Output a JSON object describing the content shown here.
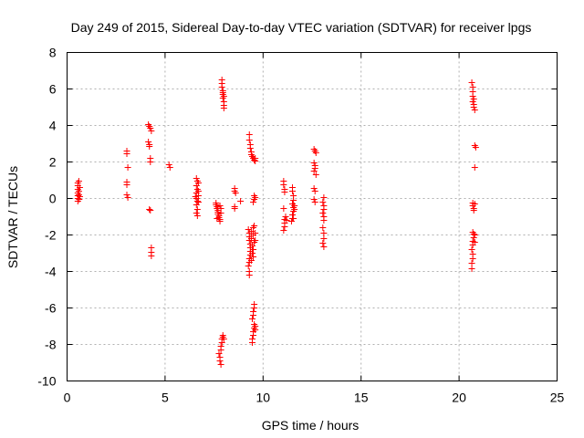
{
  "chart_data": {
    "type": "scatter",
    "title": "Day 249 of 2015, Sidereal Day-to-day VTEC variation (SDTVAR) for receiver lpgs",
    "xlabel": "GPS time / hours",
    "ylabel": "SDTVAR / TECUs",
    "xlim": [
      0,
      25
    ],
    "ylim": [
      -10,
      8
    ],
    "xticks": [
      0,
      5,
      10,
      15,
      20,
      25
    ],
    "yticks": [
      -10,
      -8,
      -6,
      -4,
      -2,
      0,
      2,
      4,
      6,
      8
    ],
    "grid": true,
    "marker": "plus",
    "color": "#ff0000",
    "series": [
      {
        "name": "SDTVAR",
        "points": [
          [
            0.55,
            0.85
          ],
          [
            0.55,
            0.7
          ],
          [
            0.55,
            0.5
          ],
          [
            0.55,
            0.3
          ],
          [
            0.55,
            0.15
          ],
          [
            0.55,
            0.0
          ],
          [
            0.55,
            -0.15
          ],
          [
            0.6,
            0.95
          ],
          [
            0.6,
            0.4
          ],
          [
            0.6,
            0.2
          ],
          [
            0.62,
            -0.05
          ],
          [
            0.65,
            0.6
          ],
          [
            0.65,
            0.1
          ],
          [
            3.05,
            2.6
          ],
          [
            3.05,
            2.45
          ],
          [
            3.1,
            1.7
          ],
          [
            3.05,
            0.9
          ],
          [
            3.05,
            0.75
          ],
          [
            3.05,
            0.2
          ],
          [
            3.1,
            0.05
          ],
          [
            4.15,
            4.05
          ],
          [
            4.2,
            3.95
          ],
          [
            4.25,
            3.85
          ],
          [
            4.3,
            3.7
          ],
          [
            4.15,
            3.1
          ],
          [
            4.2,
            2.95
          ],
          [
            4.2,
            2.85
          ],
          [
            4.25,
            2.2
          ],
          [
            4.25,
            2.0
          ],
          [
            4.2,
            -0.6
          ],
          [
            4.25,
            -0.65
          ],
          [
            4.3,
            -2.7
          ],
          [
            4.3,
            -2.95
          ],
          [
            4.3,
            -3.15
          ],
          [
            5.2,
            1.85
          ],
          [
            5.25,
            1.7
          ],
          [
            6.6,
            1.1
          ],
          [
            6.65,
            0.95
          ],
          [
            6.7,
            0.85
          ],
          [
            6.6,
            0.7
          ],
          [
            6.65,
            0.5
          ],
          [
            6.6,
            0.3
          ],
          [
            6.7,
            0.15
          ],
          [
            6.55,
            0.1
          ],
          [
            6.6,
            0.0
          ],
          [
            6.65,
            -0.15
          ],
          [
            6.6,
            -0.35
          ],
          [
            6.65,
            -0.6
          ],
          [
            6.6,
            -0.8
          ],
          [
            6.65,
            -0.95
          ],
          [
            6.7,
            -0.2
          ],
          [
            6.7,
            0.4
          ],
          [
            7.6,
            -0.25
          ],
          [
            7.6,
            -0.35
          ],
          [
            7.65,
            -0.45
          ],
          [
            7.65,
            -0.55
          ],
          [
            7.7,
            -0.65
          ],
          [
            7.7,
            -0.75
          ],
          [
            7.7,
            -0.85
          ],
          [
            7.75,
            -0.95
          ],
          [
            7.75,
            -1.05
          ],
          [
            7.8,
            -1.15
          ],
          [
            7.8,
            -1.25
          ],
          [
            7.65,
            -1.1
          ],
          [
            7.85,
            -0.55
          ],
          [
            7.85,
            -0.8
          ],
          [
            7.8,
            -0.4
          ],
          [
            7.9,
            6.5
          ],
          [
            7.9,
            6.3
          ],
          [
            7.9,
            6.1
          ],
          [
            7.95,
            5.9
          ],
          [
            7.95,
            5.7
          ],
          [
            7.95,
            5.5
          ],
          [
            8.0,
            5.3
          ],
          [
            8.0,
            5.1
          ],
          [
            8.0,
            4.95
          ],
          [
            7.95,
            5.8
          ],
          [
            8.0,
            5.6
          ],
          [
            7.75,
            -8.5
          ],
          [
            7.8,
            -8.7
          ],
          [
            7.8,
            -8.9
          ],
          [
            7.85,
            -9.1
          ],
          [
            7.85,
            -8.3
          ],
          [
            7.85,
            -8.1
          ],
          [
            7.9,
            -7.9
          ],
          [
            7.9,
            -7.7
          ],
          [
            7.95,
            -7.6
          ],
          [
            7.95,
            -7.5
          ],
          [
            8.0,
            -7.7
          ],
          [
            8.55,
            0.55
          ],
          [
            8.55,
            0.4
          ],
          [
            8.6,
            0.3
          ],
          [
            8.55,
            -0.45
          ],
          [
            8.55,
            -0.55
          ],
          [
            8.85,
            -0.15
          ],
          [
            9.3,
            3.5
          ],
          [
            9.3,
            3.2
          ],
          [
            9.35,
            2.95
          ],
          [
            9.35,
            2.75
          ],
          [
            9.4,
            2.55
          ],
          [
            9.4,
            2.4
          ],
          [
            9.45,
            2.3
          ],
          [
            9.5,
            2.2
          ],
          [
            9.55,
            2.1
          ],
          [
            9.6,
            2.05
          ],
          [
            9.6,
            2.2
          ],
          [
            9.5,
            -0.2
          ],
          [
            9.55,
            -0.05
          ],
          [
            9.6,
            0.05
          ],
          [
            9.55,
            0.15
          ],
          [
            9.25,
            -1.7
          ],
          [
            9.3,
            -1.9
          ],
          [
            9.3,
            -2.1
          ],
          [
            9.3,
            -2.3
          ],
          [
            9.35,
            -2.5
          ],
          [
            9.35,
            -2.7
          ],
          [
            9.35,
            -2.9
          ],
          [
            9.35,
            -3.1
          ],
          [
            9.3,
            -3.3
          ],
          [
            9.3,
            -3.5
          ],
          [
            9.25,
            -3.7
          ],
          [
            9.3,
            -4.0
          ],
          [
            9.3,
            -4.2
          ],
          [
            9.4,
            -1.8
          ],
          [
            9.4,
            -2.2
          ],
          [
            9.45,
            -2.6
          ],
          [
            9.45,
            -3.0
          ],
          [
            9.4,
            -3.4
          ],
          [
            9.5,
            -1.6
          ],
          [
            9.5,
            -2.0
          ],
          [
            9.55,
            -2.4
          ],
          [
            9.5,
            -2.8
          ],
          [
            9.5,
            -3.2
          ],
          [
            9.55,
            -1.5
          ],
          [
            9.6,
            -1.9
          ],
          [
            9.6,
            -2.3
          ],
          [
            9.45,
            -7.9
          ],
          [
            9.45,
            -7.7
          ],
          [
            9.5,
            -7.5
          ],
          [
            9.5,
            -7.3
          ],
          [
            9.55,
            -7.1
          ],
          [
            9.55,
            -6.9
          ],
          [
            9.6,
            -7.0
          ],
          [
            9.6,
            -7.2
          ],
          [
            9.45,
            -6.6
          ],
          [
            9.5,
            -6.4
          ],
          [
            9.5,
            -6.2
          ],
          [
            9.55,
            -6.0
          ],
          [
            9.55,
            -5.8
          ],
          [
            11.05,
            0.95
          ],
          [
            11.05,
            0.75
          ],
          [
            11.1,
            0.5
          ],
          [
            11.1,
            0.35
          ],
          [
            11.05,
            -0.55
          ],
          [
            11.1,
            -1.15
          ],
          [
            11.1,
            -1.35
          ],
          [
            11.1,
            -1.55
          ],
          [
            11.05,
            -1.75
          ],
          [
            11.15,
            -1.0
          ],
          [
            11.2,
            -1.2
          ],
          [
            11.5,
            0.6
          ],
          [
            11.5,
            0.4
          ],
          [
            11.55,
            0.15
          ],
          [
            11.55,
            -0.1
          ],
          [
            11.5,
            -0.3
          ],
          [
            11.55,
            -0.5
          ],
          [
            11.55,
            -0.7
          ],
          [
            11.5,
            -0.9
          ],
          [
            11.55,
            -1.1
          ],
          [
            11.45,
            -1.25
          ],
          [
            11.5,
            -1.1
          ],
          [
            11.6,
            -0.4
          ],
          [
            11.6,
            -0.6
          ],
          [
            12.6,
            2.7
          ],
          [
            12.65,
            2.6
          ],
          [
            12.7,
            2.5
          ],
          [
            12.6,
            1.95
          ],
          [
            12.65,
            1.8
          ],
          [
            12.65,
            1.65
          ],
          [
            12.6,
            1.5
          ],
          [
            12.7,
            1.3
          ],
          [
            12.6,
            0.55
          ],
          [
            12.65,
            0.4
          ],
          [
            12.6,
            -0.05
          ],
          [
            12.65,
            -0.2
          ],
          [
            13.1,
            0.05
          ],
          [
            13.05,
            -0.2
          ],
          [
            13.1,
            -0.4
          ],
          [
            13.1,
            -0.6
          ],
          [
            13.05,
            -0.8
          ],
          [
            13.1,
            -1.0
          ],
          [
            13.1,
            -1.2
          ],
          [
            13.05,
            -1.6
          ],
          [
            13.1,
            -1.9
          ],
          [
            13.1,
            -2.2
          ],
          [
            13.05,
            -2.45
          ],
          [
            13.1,
            -2.65
          ],
          [
            20.65,
            6.35
          ],
          [
            20.7,
            6.1
          ],
          [
            20.7,
            5.85
          ],
          [
            20.7,
            5.6
          ],
          [
            20.75,
            5.45
          ],
          [
            20.7,
            5.3
          ],
          [
            20.75,
            5.15
          ],
          [
            20.75,
            5.0
          ],
          [
            20.8,
            4.85
          ],
          [
            20.8,
            2.9
          ],
          [
            20.85,
            2.8
          ],
          [
            20.8,
            1.7
          ],
          [
            20.7,
            -0.25
          ],
          [
            20.7,
            -0.4
          ],
          [
            20.75,
            -0.55
          ],
          [
            20.75,
            -0.65
          ],
          [
            20.8,
            -0.3
          ],
          [
            20.7,
            -1.85
          ],
          [
            20.75,
            -1.95
          ],
          [
            20.75,
            -2.15
          ],
          [
            20.7,
            -2.35
          ],
          [
            20.7,
            -2.55
          ],
          [
            20.65,
            -2.8
          ],
          [
            20.7,
            -3.05
          ],
          [
            20.7,
            -3.3
          ],
          [
            20.65,
            -3.55
          ],
          [
            20.65,
            -3.85
          ],
          [
            20.8,
            -2.0
          ],
          [
            20.8,
            -2.4
          ]
        ]
      }
    ]
  }
}
